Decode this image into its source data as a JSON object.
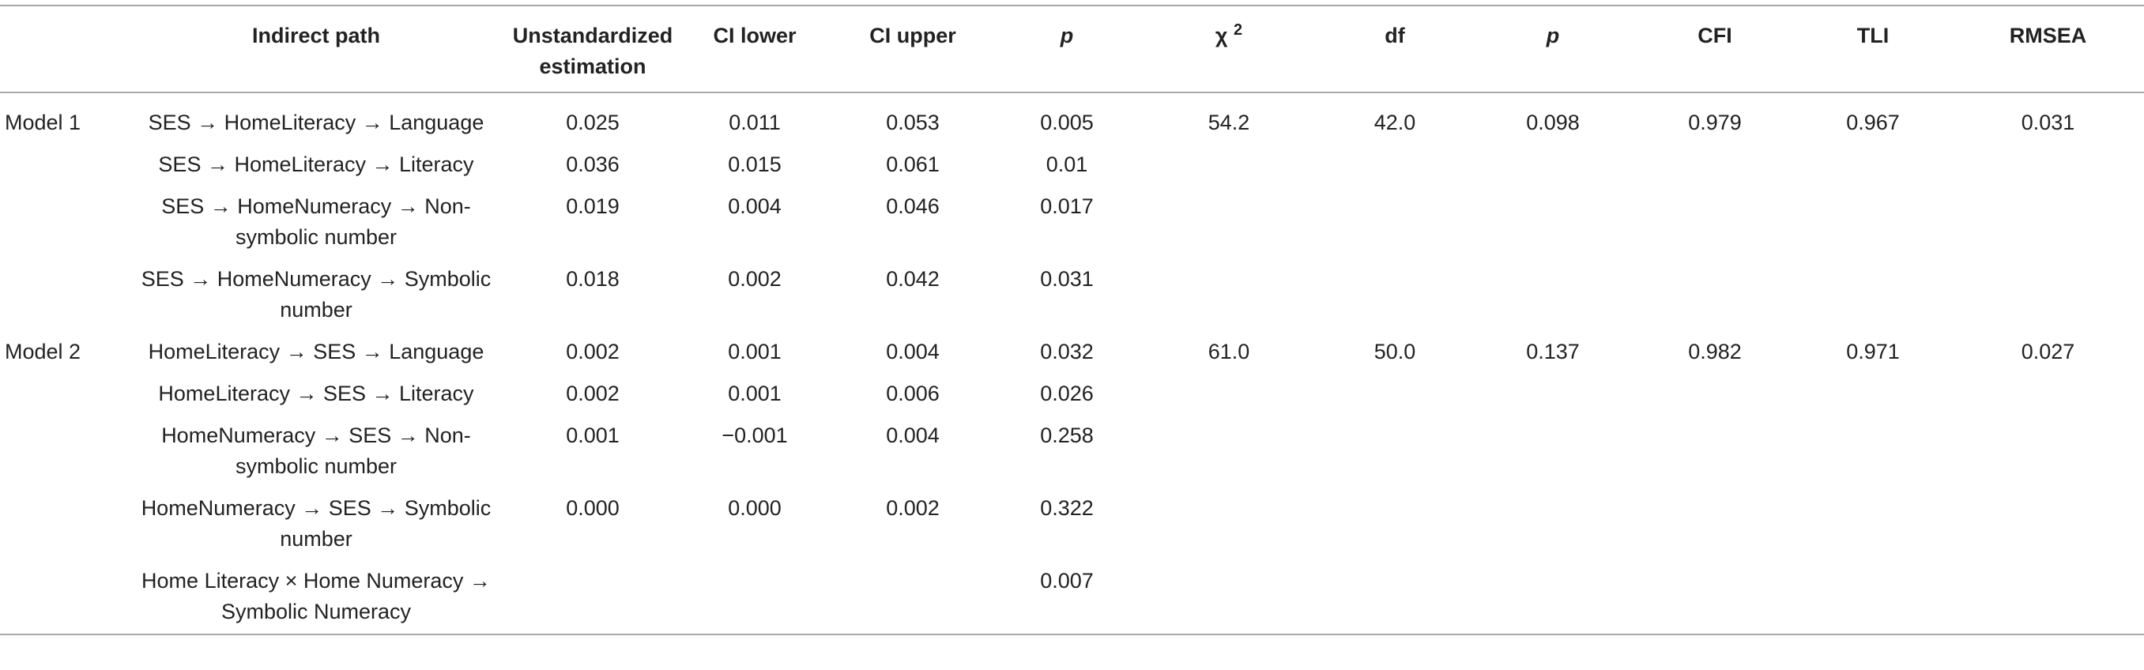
{
  "headers": {
    "model": "",
    "path": "Indirect path",
    "estimation": "Unstandardized estimation",
    "ci_lower": "CI lower",
    "ci_upper": "CI upper",
    "p": "p",
    "chi_sq": "χ",
    "chi_sq_sup": "2",
    "df": "df",
    "p_model": "p",
    "cfi": "CFI",
    "tli": "TLI",
    "rmsea": "RMSEA"
  },
  "rows": [
    {
      "model": "Model 1",
      "path": "SES → HomeLiteracy → Language",
      "est": "0.025",
      "lower": "0.011",
      "upper": "0.053",
      "p": "0.005",
      "chi": "54.2",
      "df": "42.0",
      "p_model": "0.098",
      "cfi": "0.979",
      "tli": "0.967",
      "rmsea": "0.031"
    },
    {
      "model": "",
      "path": "SES → HomeLiteracy → Literacy",
      "est": "0.036",
      "lower": "0.015",
      "upper": "0.061",
      "p": "0.01",
      "chi": "",
      "df": "",
      "p_model": "",
      "cfi": "",
      "tli": "",
      "rmsea": ""
    },
    {
      "model": "",
      "path": "SES → HomeNumeracy → Non-symbolic number",
      "est": "0.019",
      "lower": "0.004",
      "upper": "0.046",
      "p": "0.017",
      "chi": "",
      "df": "",
      "p_model": "",
      "cfi": "",
      "tli": "",
      "rmsea": ""
    },
    {
      "model": "",
      "path": "SES → HomeNumeracy → Symbolic number",
      "est": "0.018",
      "lower": "0.002",
      "upper": "0.042",
      "p": "0.031",
      "chi": "",
      "df": "",
      "p_model": "",
      "cfi": "",
      "tli": "",
      "rmsea": ""
    },
    {
      "model": "Model 2",
      "path": "HomeLiteracy → SES → Language",
      "est": "0.002",
      "lower": "0.001",
      "upper": "0.004",
      "p": "0.032",
      "chi": "61.0",
      "df": "50.0",
      "p_model": "0.137",
      "cfi": "0.982",
      "tli": "0.971",
      "rmsea": "0.027"
    },
    {
      "model": "",
      "path": "HomeLiteracy → SES → Literacy",
      "est": "0.002",
      "lower": "0.001",
      "upper": "0.006",
      "p": "0.026",
      "chi": "",
      "df": "",
      "p_model": "",
      "cfi": "",
      "tli": "",
      "rmsea": ""
    },
    {
      "model": "",
      "path": "HomeNumeracy → SES → Non-symbolic number",
      "est": "0.001",
      "lower": "−0.001",
      "upper": "0.004",
      "p": "0.258",
      "chi": "",
      "df": "",
      "p_model": "",
      "cfi": "",
      "tli": "",
      "rmsea": ""
    },
    {
      "model": "",
      "path": "HomeNumeracy → SES → Symbolic number",
      "est": "0.000",
      "lower": "0.000",
      "upper": "0.002",
      "p": "0.322",
      "chi": "",
      "df": "",
      "p_model": "",
      "cfi": "",
      "tli": "",
      "rmsea": ""
    },
    {
      "model": "",
      "path": "Home Literacy × Home Numeracy → Symbolic Numeracy",
      "est": "",
      "lower": "",
      "upper": "",
      "p": "0.007",
      "chi": "",
      "df": "",
      "p_model": "",
      "cfi": "",
      "tli": "",
      "rmsea": ""
    }
  ]
}
